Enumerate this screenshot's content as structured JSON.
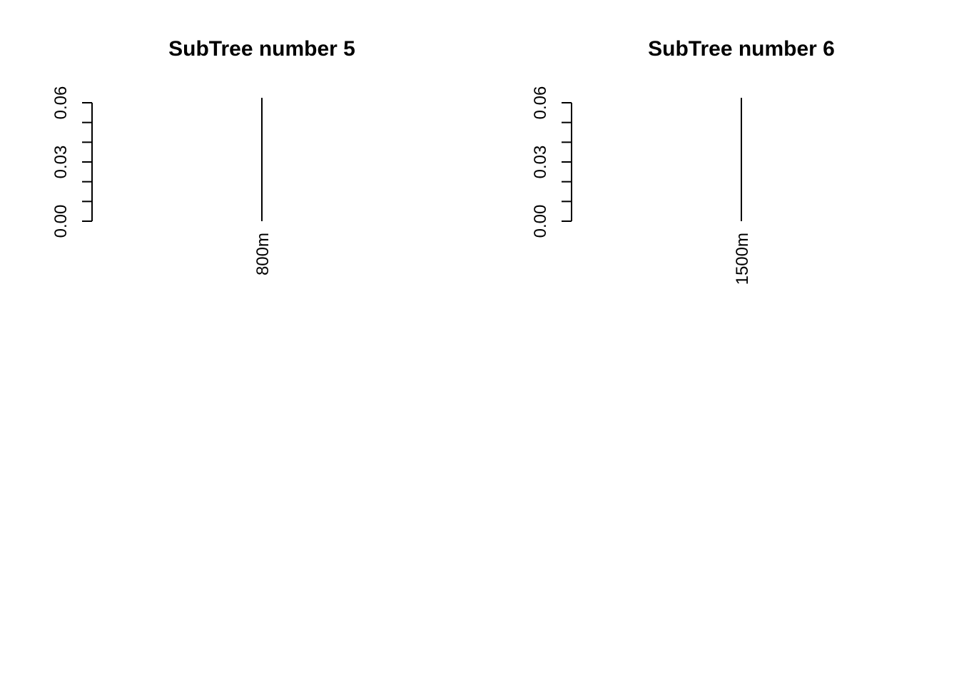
{
  "chart_data": [
    {
      "type": "dendrogram",
      "title": "SubTree number 5",
      "ylim": [
        0,
        0.06
      ],
      "y_ticks": [
        {
          "value": 0.0,
          "label": "0.00"
        },
        {
          "value": 0.03,
          "label": "0.03"
        },
        {
          "value": 0.06,
          "label": "0.06"
        }
      ],
      "y_minor_ticks": [
        0.01,
        0.02,
        0.04,
        0.05
      ],
      "leaves": [
        {
          "label": "800m",
          "height": 0.0625
        }
      ]
    },
    {
      "type": "dendrogram",
      "title": "SubTree number 6",
      "ylim": [
        0,
        0.06
      ],
      "y_ticks": [
        {
          "value": 0.0,
          "label": "0.00"
        },
        {
          "value": 0.03,
          "label": "0.03"
        },
        {
          "value": 0.06,
          "label": "0.06"
        }
      ],
      "y_minor_ticks": [
        0.01,
        0.02,
        0.04,
        0.05
      ],
      "leaves": [
        {
          "label": "1500m",
          "height": 0.0625
        }
      ]
    }
  ]
}
